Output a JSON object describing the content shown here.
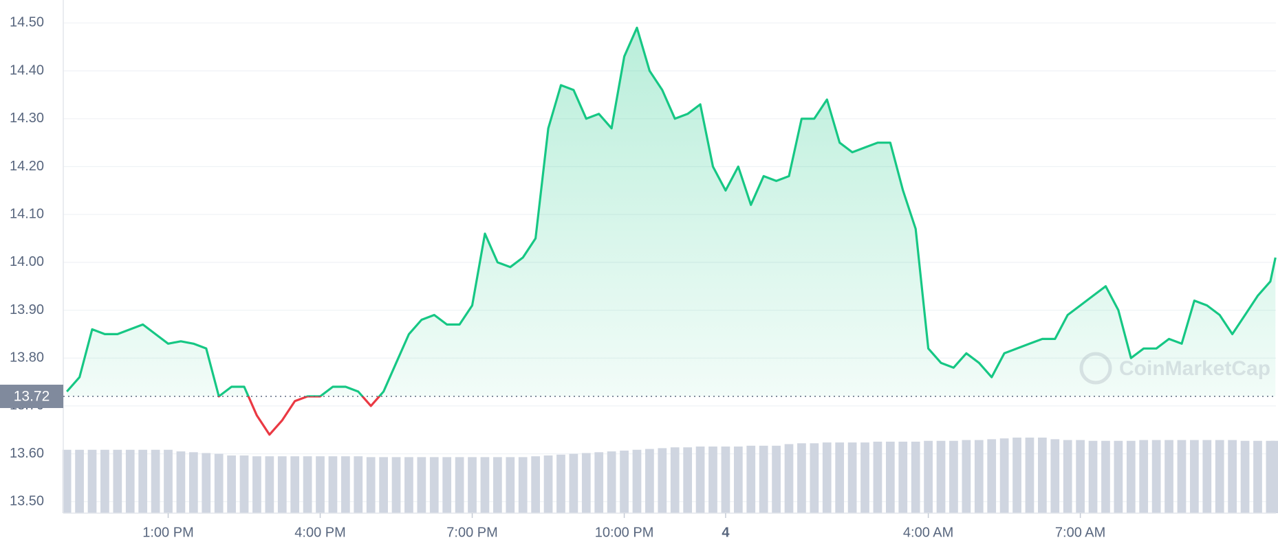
{
  "chart_data": {
    "type": "line",
    "x": [
      11,
      11.25,
      11.5,
      11.75,
      12,
      12.25,
      12.5,
      12.75,
      13,
      13.25,
      13.5,
      13.75,
      14,
      14.25,
      14.5,
      14.75,
      15,
      15.25,
      15.5,
      15.75,
      16,
      16.25,
      16.5,
      16.75,
      17,
      17.25,
      17.5,
      17.75,
      18,
      18.25,
      18.5,
      18.75,
      19,
      19.25,
      19.5,
      19.75,
      20,
      20.25,
      20.5,
      20.75,
      21,
      21.25,
      21.5,
      21.75,
      22,
      22.25,
      22.5,
      22.75,
      23,
      23.25,
      23.5,
      23.75,
      24,
      24.25,
      24.5,
      24.75,
      25,
      25.25,
      25.5,
      25.75,
      26,
      26.25,
      26.5,
      26.75,
      27,
      27.25,
      27.5,
      27.75,
      28,
      28.25,
      28.5,
      28.75,
      29,
      29.25,
      29.5,
      29.75,
      30,
      30.25,
      30.5,
      30.75,
      31,
      31.25,
      31.5,
      31.75,
      32,
      32.25,
      32.5,
      32.75,
      33,
      33.25,
      33.5,
      33.75,
      34,
      34.25,
      34.5,
      34.75,
      34.85
    ],
    "values": [
      13.73,
      13.76,
      13.86,
      13.85,
      13.85,
      13.86,
      13.87,
      13.85,
      13.83,
      13.835,
      13.83,
      13.82,
      13.72,
      13.74,
      13.74,
      13.68,
      13.64,
      13.67,
      13.71,
      13.72,
      13.72,
      13.74,
      13.74,
      13.73,
      13.7,
      13.73,
      13.79,
      13.85,
      13.88,
      13.89,
      13.87,
      13.87,
      13.91,
      14.06,
      14.0,
      13.99,
      14.01,
      14.05,
      14.28,
      14.37,
      14.36,
      14.3,
      14.31,
      14.28,
      14.43,
      14.49,
      14.4,
      14.36,
      14.3,
      14.31,
      14.33,
      14.2,
      14.15,
      14.2,
      14.12,
      14.18,
      14.17,
      14.18,
      14.3,
      14.3,
      14.34,
      14.25,
      14.23,
      14.24,
      14.25,
      14.25,
      14.15,
      14.07,
      13.82,
      13.79,
      13.78,
      13.81,
      13.79,
      13.76,
      13.81,
      13.82,
      13.83,
      13.84,
      13.84,
      13.89,
      13.91,
      13.93,
      13.95,
      13.9,
      13.8,
      13.82,
      13.82,
      13.84,
      13.83,
      13.92,
      13.91,
      13.89,
      13.85,
      13.89,
      13.93,
      13.96,
      14.01
    ],
    "volume": [
      78,
      78,
      78,
      78,
      78,
      78,
      78,
      78,
      78,
      76,
      75,
      74,
      73,
      71,
      71,
      70,
      70,
      70,
      70,
      70,
      70,
      70,
      70,
      70,
      69,
      69,
      69,
      69,
      69,
      69,
      69,
      69,
      69,
      69,
      69,
      69,
      69,
      70,
      71,
      72,
      73,
      74,
      75,
      76,
      77,
      78,
      79,
      80,
      81,
      81,
      82,
      82,
      82,
      82,
      83,
      83,
      83,
      85,
      86,
      86,
      87,
      87,
      87,
      87,
      88,
      88,
      88,
      88,
      89,
      89,
      89,
      90,
      90,
      91,
      92,
      93,
      93,
      93,
      91,
      90,
      90,
      89,
      89,
      89,
      89,
      90,
      90,
      90,
      90,
      90,
      90,
      90,
      90,
      89,
      89,
      89,
      89
    ],
    "colors": {
      "up": "#16c784",
      "down": "#ea3943",
      "volume": "#cfd5e0"
    },
    "reference": {
      "value": 13.72,
      "label": "13.72"
    },
    "watermark": "CoinMarketCap",
    "xlim": [
      10.93,
      34.86
    ],
    "xticks": [
      {
        "value": 13,
        "label": "1:00 PM"
      },
      {
        "value": 16,
        "label": "4:00 PM"
      },
      {
        "value": 19,
        "label": "7:00 PM"
      },
      {
        "value": 22,
        "label": "10:00 PM"
      },
      {
        "value": 24,
        "label": "4"
      },
      {
        "value": 28,
        "label": "4:00 AM"
      },
      {
        "value": 31,
        "label": "7:00 AM"
      }
    ],
    "ylim": [
      13.476,
      14.548
    ],
    "yticks": [
      {
        "value": 13.5,
        "label": "13.50"
      },
      {
        "value": 13.6,
        "label": "13.60"
      },
      {
        "value": 13.7,
        "label": "13.70"
      },
      {
        "value": 13.8,
        "label": "13.80"
      },
      {
        "value": 13.9,
        "label": "13.90"
      },
      {
        "value": 14,
        "label": "14.00"
      },
      {
        "value": 14.1,
        "label": "14.10"
      },
      {
        "value": 14.2,
        "label": "14.20"
      },
      {
        "value": 14.3,
        "label": "14.30"
      },
      {
        "value": 14.4,
        "label": "14.40"
      },
      {
        "value": 14.5,
        "label": "14.50"
      }
    ],
    "grid": true
  }
}
